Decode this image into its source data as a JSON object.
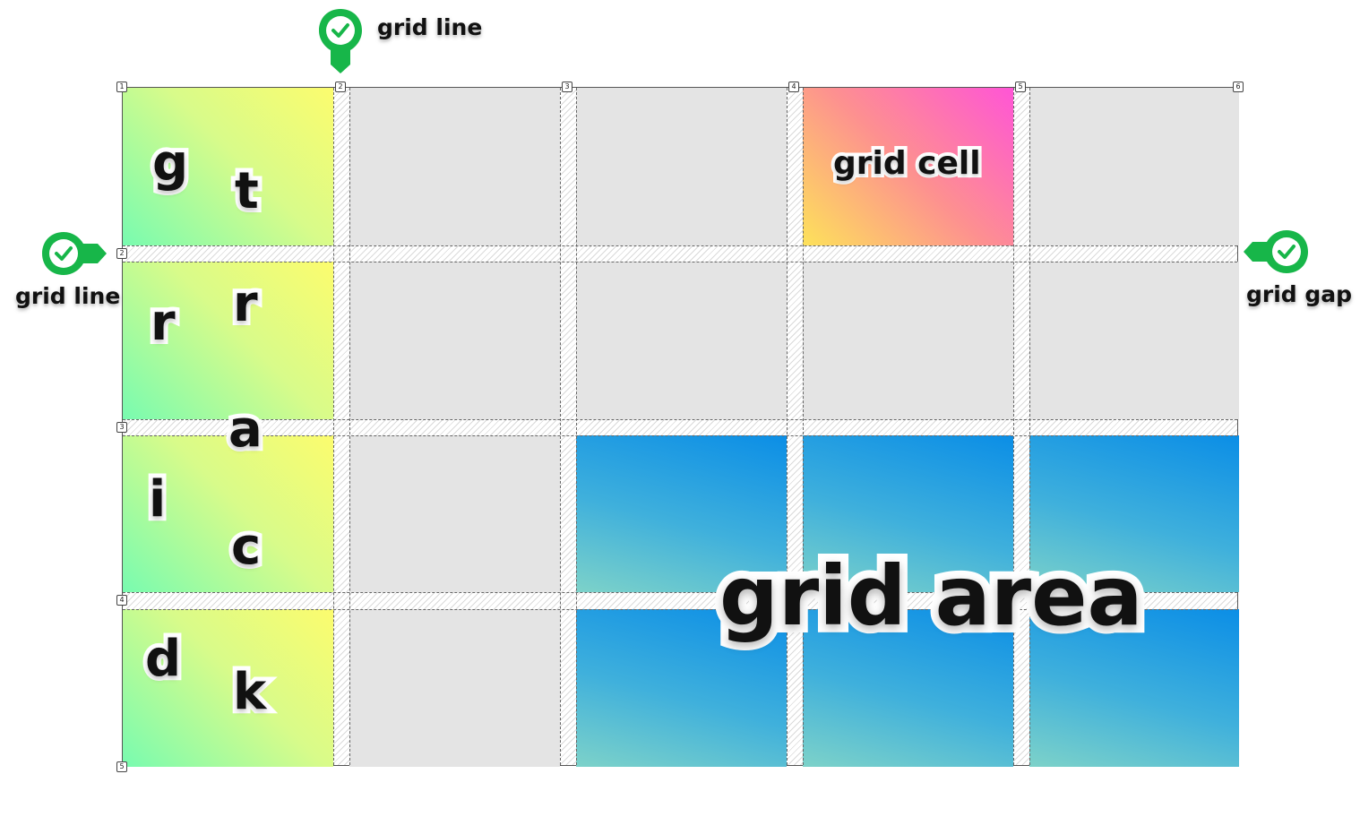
{
  "line_numbers": {
    "columns": [
      "1",
      "2",
      "3",
      "4",
      "5",
      "6"
    ],
    "rows": [
      "1",
      "2",
      "3",
      "4",
      "5"
    ]
  },
  "vertical_letters": {
    "left": [
      "g",
      "r",
      "i",
      "d"
    ],
    "right": [
      "t",
      "r",
      "a",
      "c",
      "k"
    ]
  },
  "labels": {
    "grid_cell": "grid cell",
    "grid_area": "grid area",
    "callout_top": "grid line",
    "callout_left": "grid line",
    "callout_right": "grid gap"
  },
  "colors": {
    "marker_green": "#17b649",
    "marker_check": "#17b649"
  },
  "icons": {
    "marker": "checkmark-pin-icon"
  }
}
